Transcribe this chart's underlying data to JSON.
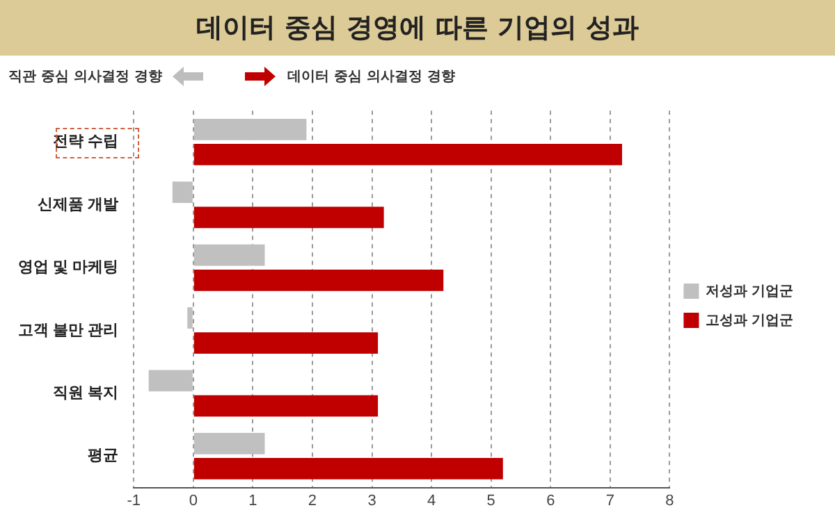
{
  "chart_data": {
    "type": "bar",
    "orientation": "horizontal",
    "title": "데이터 중심 경영에 따른 기업의 성과",
    "annotations": [
      "직관 중심 의사결정 경향",
      "데이터 중심 의사결정 경향"
    ],
    "categories": [
      "전략 수립",
      "신제품 개발",
      "영업 및 마케팅",
      "고객 불만 관리",
      "직원 복지",
      "평균"
    ],
    "series": [
      {
        "name": "저성과 기업군",
        "color": "#c0c0c0",
        "values": [
          1.9,
          -0.35,
          1.2,
          -0.1,
          -0.75,
          1.2
        ]
      },
      {
        "name": "고성과 기업군",
        "color": "#c00000",
        "values": [
          7.2,
          3.2,
          4.2,
          3.1,
          3.1,
          5.2
        ]
      }
    ],
    "xlim": [
      -1,
      8
    ],
    "xticks": [
      -1,
      0,
      1,
      2,
      3,
      4,
      5,
      6,
      7,
      8
    ],
    "grid": "x",
    "legend": "right"
  }
}
